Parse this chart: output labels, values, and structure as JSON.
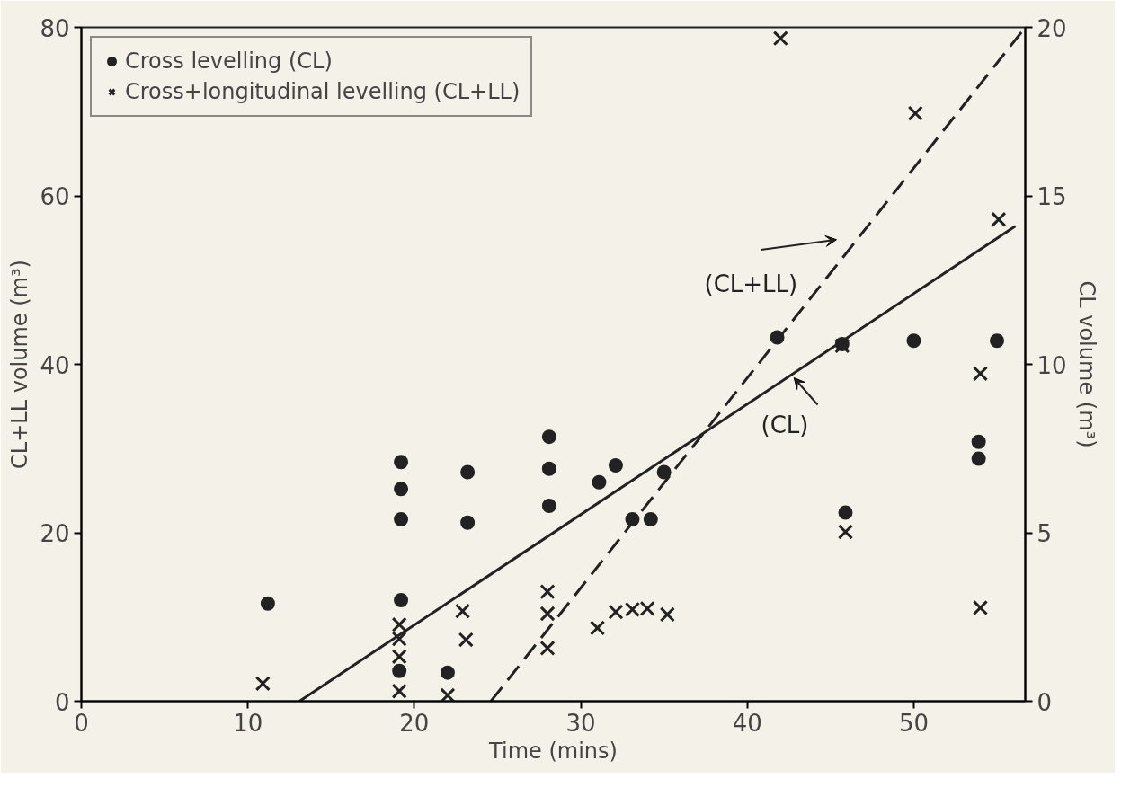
{
  "chart_data": {
    "type": "scatter",
    "xlabel": "Time (mins)",
    "ylabel": "CL+LL volume (m³)",
    "y2label": "CL volume (m³)",
    "xlim": [
      0,
      56.7
    ],
    "xticks": [
      0,
      10,
      20,
      30,
      40,
      50
    ],
    "ylim": [
      0,
      80
    ],
    "yticks": [
      0,
      20,
      40,
      60,
      80
    ],
    "y2lim": [
      0,
      20
    ],
    "y2ticks": [
      0,
      5,
      10,
      15,
      20
    ],
    "grid": false,
    "legend": "top left",
    "series": [
      {
        "name": "Cross levelling (CL)",
        "marker": "circle",
        "axis": "y2",
        "color": "#222222",
        "x": [
          11.2,
          19.2,
          19.1,
          22.0,
          19.2,
          19.2,
          19.2,
          23.2,
          23.2,
          28.1,
          28.1,
          28.1,
          31.1,
          32.1,
          33.1,
          34.2,
          35.0,
          41.8,
          45.7,
          45.9,
          50.0,
          53.9,
          53.9,
          55.0
        ],
        "values": [
          2.9,
          3.0,
          0.9,
          0.85,
          7.1,
          6.3,
          5.4,
          6.8,
          5.3,
          7.85,
          6.9,
          5.8,
          6.5,
          7.0,
          5.4,
          5.4,
          6.8,
          10.8,
          10.6,
          5.6,
          10.7,
          7.7,
          7.2,
          10.7
        ]
      },
      {
        "name": "Cross+longitudinal levelling (CL+LL)",
        "marker": "cross",
        "color": "#222222",
        "x": [
          10.9,
          19.1,
          19.1,
          19.1,
          19.1,
          22.0,
          22.9,
          23.1,
          28.0,
          28.0,
          28.0,
          31.0,
          32.1,
          33.1,
          34.0,
          35.2,
          42.0,
          45.7,
          45.9,
          50.1,
          54.0,
          54.0,
          55.1
        ],
        "values": [
          2.1,
          9.1,
          7.4,
          5.3,
          1.2,
          0.7,
          10.7,
          7.3,
          13.0,
          10.4,
          6.3,
          8.7,
          10.6,
          10.9,
          11.0,
          10.3,
          78.7,
          42.2,
          20.1,
          69.8,
          38.9,
          11.1,
          57.2
        ]
      },
      {
        "type": "line",
        "axis": "y2",
        "line_style": "solid",
        "color": "#222222",
        "x": [
          13.1,
          56.1
        ],
        "values": [
          0,
          14.1
        ]
      },
      {
        "type": "line",
        "line_style": "dashed",
        "color": "#222222",
        "x": [
          24.6,
          56.7
        ],
        "values": [
          0,
          80
        ]
      }
    ],
    "annotations": [
      "(CL+LL)",
      "(CL)"
    ]
  }
}
